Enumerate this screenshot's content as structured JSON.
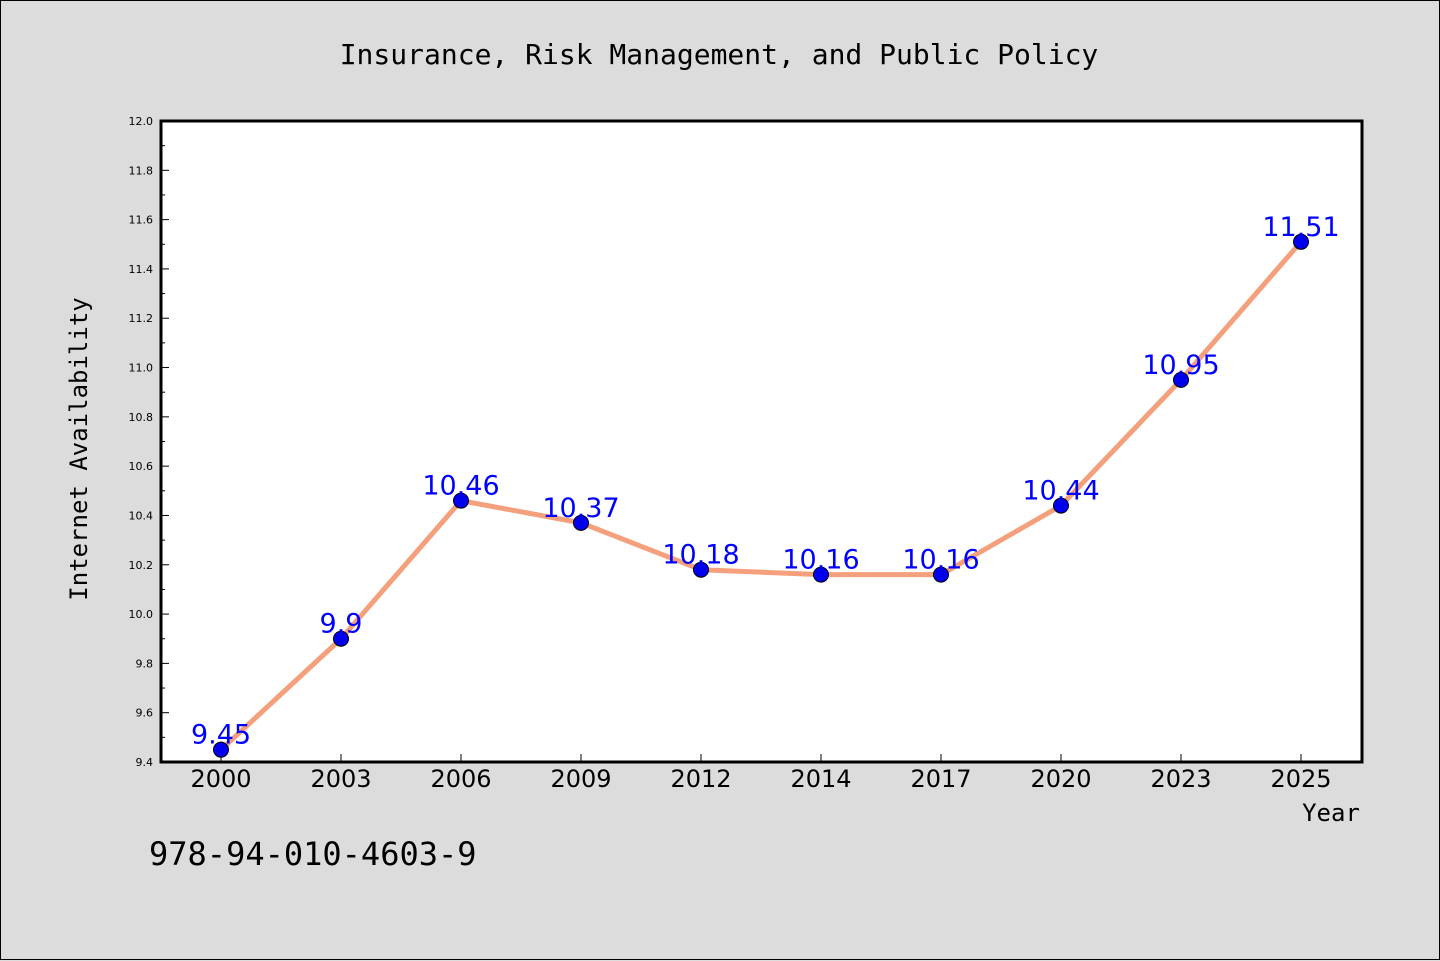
{
  "chart_data": {
    "type": "line",
    "title": "Insurance, Risk Management, and Public Policy",
    "xlabel": "Year",
    "ylabel": "Internet Availability",
    "categories": [
      "2000",
      "2003",
      "2006",
      "2009",
      "2012",
      "2014",
      "2017",
      "2020",
      "2023",
      "2025"
    ],
    "values": [
      9.45,
      9.9,
      10.46,
      10.37,
      10.18,
      10.16,
      10.16,
      10.44,
      10.95,
      11.51
    ],
    "data_labels": [
      "9.45",
      "9.9",
      "10.46",
      "10.37",
      "10.18",
      "10.16",
      "10.16",
      "10.44",
      "10.95",
      "11.51"
    ],
    "ylim": [
      9.4,
      12.0
    ],
    "yticks": [
      "9.4",
      "9.6",
      "9.8",
      "10.0",
      "10.2",
      "10.4",
      "10.6",
      "10.8",
      "11.0",
      "11.2",
      "11.4",
      "11.6",
      "11.8",
      "12.0"
    ],
    "grid": false,
    "legend": "none",
    "colors": {
      "line": "#f4a07c",
      "marker": "#0000ee",
      "data_label": "#0000ff",
      "background": "#dcdcdc",
      "plot_background": "#ffffff"
    }
  },
  "footer_text": "978-94-010-4603-9"
}
